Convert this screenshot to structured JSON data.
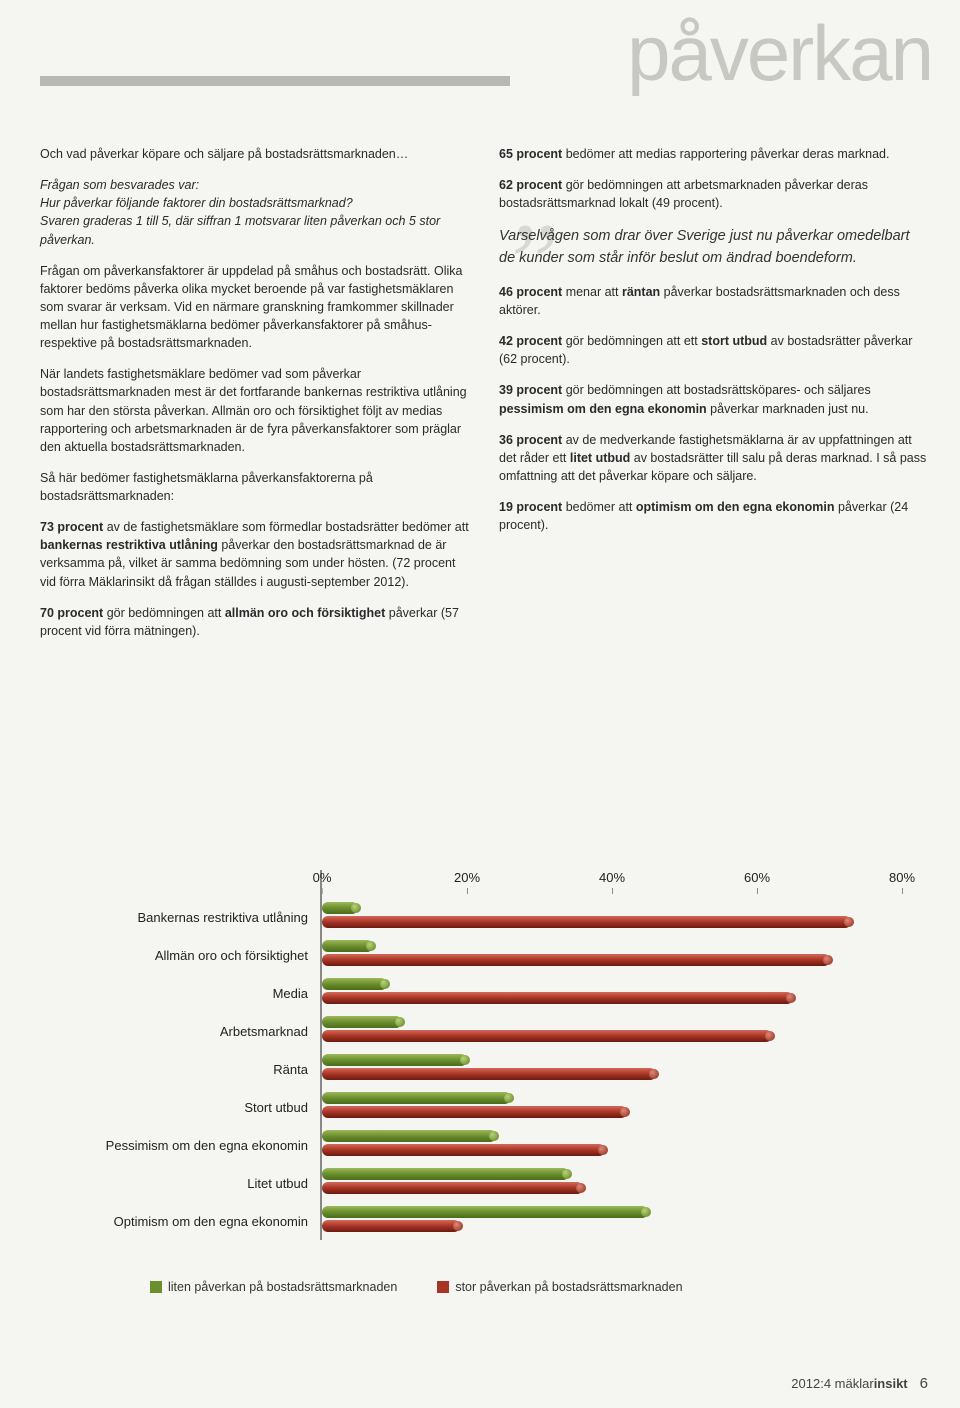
{
  "title": "påverkan",
  "left": {
    "heading": "Och vad påverkar köpare och säljare på bostadsrättsmarknaden…",
    "q_label": "Frågan som besvarades var:",
    "q_text": "Hur påverkar följande faktorer din bostadsrättsmarknad?",
    "q_note": "Svaren graderas 1 till 5, där siffran 1 motsvarar liten påverkan och 5 stor påverkan.",
    "p1": "Frågan om påverkansfaktorer är uppdelad på småhus och bostadsrätt. Olika faktorer bedöms påverka olika mycket beroende på var fastighetsmäklaren som svarar är verksam. Vid en närmare granskning framkommer skillnader mellan hur fastighetsmäklarna bedömer påverkansfaktorer på småhus- respektive på bostadsrättsmarknaden.",
    "p2": "När landets fastighetsmäklare bedömer vad som påverkar bostadsrättsmarknaden mest är det fortfarande bankernas restriktiva utlåning som har den största påverkan. Allmän oro och försiktighet följt av medias rapportering och arbetsmarknaden är de fyra påverkansfaktorer som präglar den aktuella bostadsrättsmarknaden.",
    "p3": "Så här bedömer fastighetsmäklarna påverkansfaktorerna på bostadsrättsmarknaden:",
    "p4a": "73 procent",
    "p4b": " av de fastighetsmäklare som förmedlar bostadsrätter bedömer att ",
    "p4c": "bankernas restriktiva utlåning",
    "p4d": " påverkar den bostadsrättsmarknad de är verksamma på, vilket är samma bedömning som under hösten. (72 procent vid förra Mäklarinsikt då frågan ställdes i augusti-september 2012).",
    "p5a": "70 procent",
    "p5b": " gör bedömningen att ",
    "p5c": "allmän oro och försiktighet",
    "p5d": " påverkar (57 procent vid förra mätningen)."
  },
  "right": {
    "r1a": "65 procent",
    "r1b": " bedömer att medias rapportering påverkar deras marknad.",
    "r2a": "62 procent",
    "r2b": " gör bedömningen att arbetsmarknaden påverkar deras bostadsrättsmarknad lokalt (49 procent).",
    "pull": "Varselvågen som drar över Sverige just nu påverkar omedelbart de kunder som står inför beslut om ändrad boendeform.",
    "r3a": "46 procent",
    "r3b": " menar att ",
    "r3c": "räntan",
    "r3d": " påverkar bostadsrättsmarknaden och dess aktörer.",
    "r4a": "42 procent",
    "r4b": " gör bedömningen att ett ",
    "r4c": "stort utbud",
    "r4d": " av bostadsrätter påverkar (62 procent).",
    "r5a": "39 procent",
    "r5b": " gör bedömningen att bostadsrättsköpares- och säljares ",
    "r5c": "pessimism om den egna ekonomin",
    "r5d": " påverkar marknaden just nu.",
    "r6a": "36 procent",
    "r6b": " av de medverkande fastighetsmäklarna är av uppfattningen att det råder ett ",
    "r6c": "litet utbud",
    "r6d": " av bostadsrätter till salu på deras marknad. I så pass omfattning att det påverkar köpare och säljare.",
    "r7a": "19 procent",
    "r7b": " bedömer att ",
    "r7c": "optimism om den egna ekonomin",
    "r7d": " påverkar (24 procent)."
  },
  "chart": {
    "type": "bar",
    "x_ticks": [
      "0%",
      "20%",
      "40%",
      "60%",
      "80%"
    ],
    "x_max": 80,
    "categories": [
      "Bankernas restriktiva utlåning",
      "Allmän oro och försiktighet",
      "Media",
      "Arbetsmarknad",
      "Ränta",
      "Stort utbud",
      "Pessimism om den egna ekonomin",
      "Litet utbud",
      "Optimism om den egna ekonomin"
    ],
    "series": [
      {
        "name": "liten",
        "color": "#6b8f2e",
        "values": [
          5,
          7,
          9,
          11,
          20,
          26,
          24,
          34,
          45
        ]
      },
      {
        "name": "stor",
        "color": "#a73424",
        "values": [
          73,
          70,
          65,
          62,
          46,
          42,
          39,
          36,
          19
        ]
      }
    ],
    "legend": [
      "liten påverkan på bostadsrättsmarknaden",
      "stor påverkan på bostadsrättsmarknaden"
    ],
    "background": "#f5f5f2",
    "axis_color": "#888888",
    "label_fontsize": 13
  },
  "footer": {
    "issue": "2012:4 ",
    "brand1": "mäklar",
    "brand2": "insikt",
    "page": "6"
  }
}
